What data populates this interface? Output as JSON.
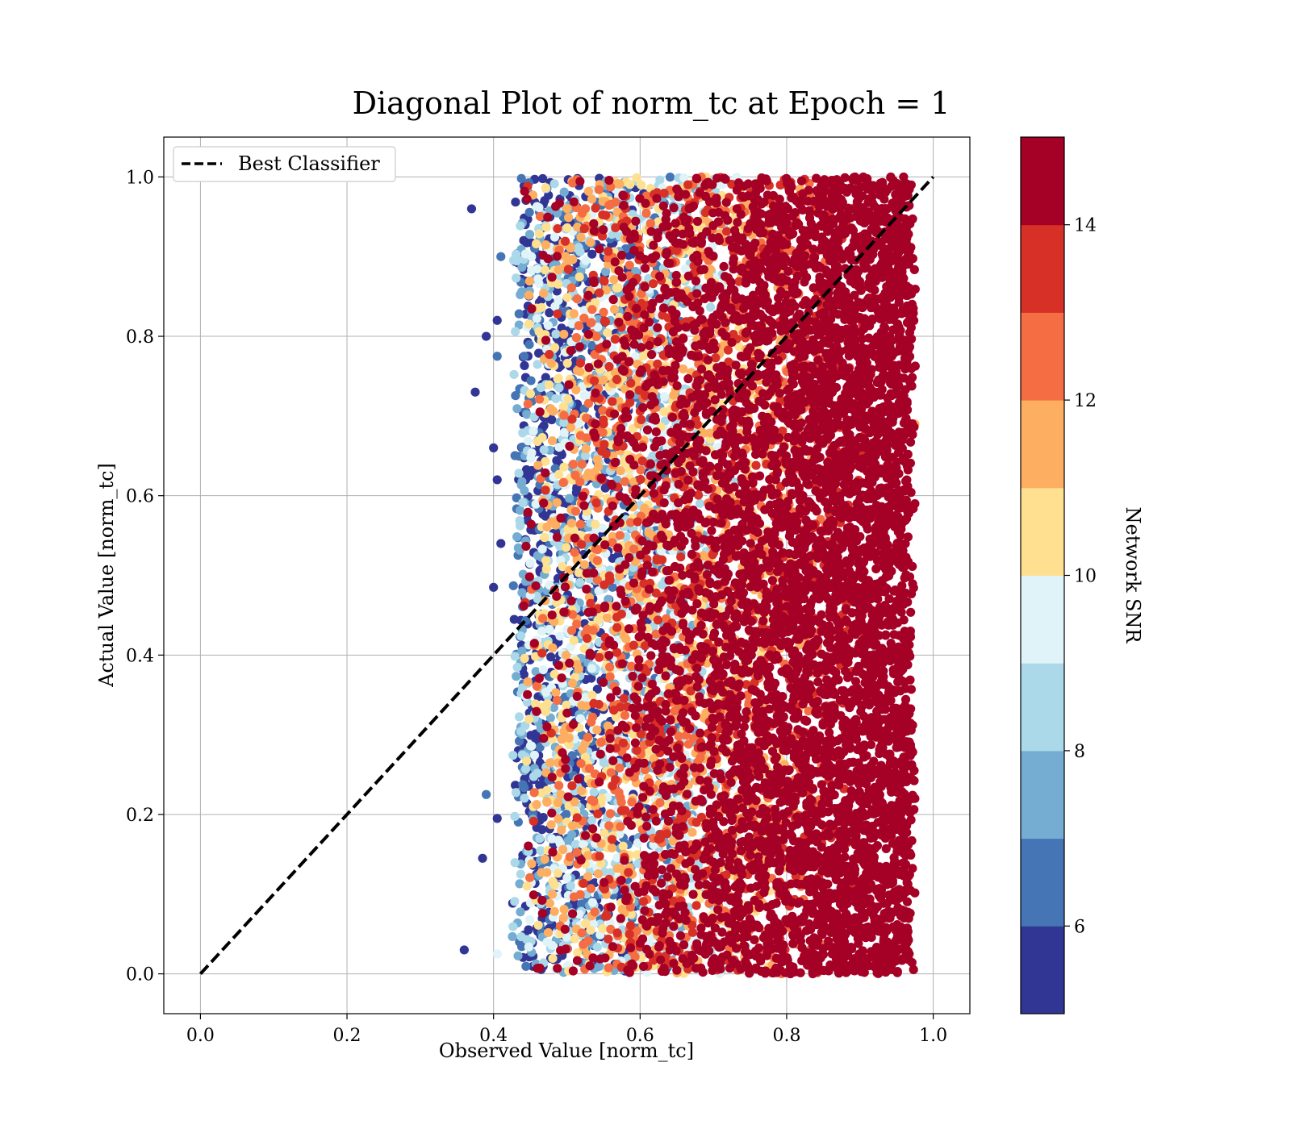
{
  "chart_data": {
    "type": "scatter",
    "title": "Diagonal Plot of norm_tc at Epoch = 1",
    "xlabel": "Observed Value [norm_tc]",
    "ylabel": "Actual Value [norm_tc]",
    "xlim": [
      -0.05,
      1.05
    ],
    "ylim": [
      -0.05,
      1.05
    ],
    "xticks": [
      0.0,
      0.2,
      0.4,
      0.6,
      0.8,
      1.0
    ],
    "yticks": [
      0.0,
      0.2,
      0.4,
      0.6,
      0.8,
      1.0
    ],
    "xtick_labels": [
      "0.0",
      "0.2",
      "0.4",
      "0.6",
      "0.8",
      "1.0"
    ],
    "ytick_labels": [
      "0.0",
      "0.2",
      "0.4",
      "0.6",
      "0.8",
      "1.0"
    ],
    "grid": true,
    "legend": {
      "placement": "upper-left",
      "entries": [
        "Best Classifier"
      ]
    },
    "reference_line": {
      "name": "Best Classifier",
      "x": [
        0.0,
        1.0
      ],
      "y": [
        0.0,
        1.0
      ],
      "style": "dashed",
      "color": "#000000"
    },
    "scatter_extent": {
      "x_range": [
        0.43,
        0.97
      ],
      "y_range": [
        0.0,
        1.0
      ]
    },
    "colorbar": {
      "label": "Network SNR",
      "range": [
        5,
        15
      ],
      "ticks": [
        6,
        8,
        10,
        12,
        14
      ],
      "tick_labels": [
        "6",
        "8",
        "10",
        "12",
        "14"
      ],
      "colormap": "RdYlBu_r",
      "colors": [
        "#313695",
        "#4575b4",
        "#74add1",
        "#abd9e9",
        "#e0f3f8",
        "#fee090",
        "#fdae61",
        "#f46d43",
        "#d73027",
        "#a50026"
      ]
    },
    "outlier_points": [
      {
        "x": 0.37,
        "y": 0.96,
        "snr": 5.2
      },
      {
        "x": 0.375,
        "y": 0.73,
        "snr": 5.3
      },
      {
        "x": 0.39,
        "y": 0.8,
        "snr": 5.4
      },
      {
        "x": 0.36,
        "y": 0.03,
        "snr": 5.5
      },
      {
        "x": 0.385,
        "y": 0.145,
        "snr": 5.6
      },
      {
        "x": 0.39,
        "y": 0.225,
        "snr": 6.5
      },
      {
        "x": 0.405,
        "y": 0.82,
        "snr": 5.2
      },
      {
        "x": 0.4,
        "y": 0.66,
        "snr": 5.4
      },
      {
        "x": 0.405,
        "y": 0.62,
        "snr": 5.3
      },
      {
        "x": 0.4,
        "y": 0.485,
        "snr": 5.5
      },
      {
        "x": 0.41,
        "y": 0.54,
        "snr": 5.2
      },
      {
        "x": 0.405,
        "y": 0.775,
        "snr": 6.8
      },
      {
        "x": 0.405,
        "y": 0.195,
        "snr": 5.3
      },
      {
        "x": 0.41,
        "y": 0.9,
        "snr": 6.0
      },
      {
        "x": 0.405,
        "y": 0.025,
        "snr": 9.5
      },
      {
        "x": 0.975,
        "y": 0.69,
        "snr": 11.5
      },
      {
        "x": 0.97,
        "y": 0.99,
        "snr": 14.8
      },
      {
        "x": 0.975,
        "y": 0.59,
        "snr": 14.8
      },
      {
        "x": 0.97,
        "y": 0.83,
        "snr": 14.8
      },
      {
        "x": 0.975,
        "y": 0.22,
        "snr": 14.8
      }
    ]
  }
}
